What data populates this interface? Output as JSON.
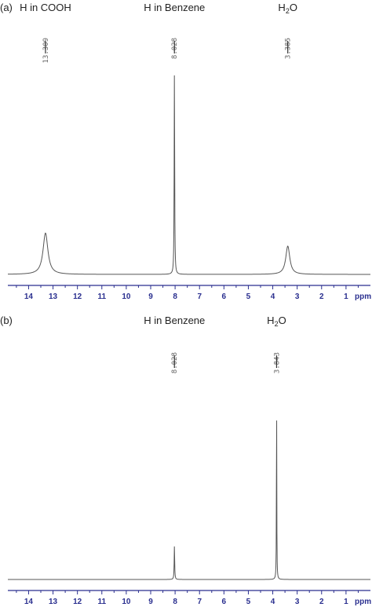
{
  "chart_data": [
    {
      "type": "line",
      "panel_label": "(a)",
      "xlabel": "ppm",
      "xlim": [
        14.85,
        0.0
      ],
      "ylim": [
        0,
        1.0
      ],
      "x_ticks": [
        "14",
        "13",
        "12",
        "11",
        "10",
        "9",
        "8",
        "7",
        "6",
        "5",
        "4",
        "3",
        "2",
        "1"
      ],
      "grid": false,
      "peaks": [
        {
          "shift": 13.309,
          "label": "13.309",
          "height": 0.19,
          "width": 0.12,
          "annotation": "H in COOH"
        },
        {
          "shift": 8.028,
          "label": "8.028",
          "height": 0.93,
          "width": 0.012,
          "annotation": "H in Benzene"
        },
        {
          "shift": 3.385,
          "label": "3.385",
          "height": 0.13,
          "width": 0.1,
          "annotation": "H2O"
        }
      ]
    },
    {
      "type": "line",
      "panel_label": "(b)",
      "xlabel": "ppm",
      "xlim": [
        14.85,
        0.0
      ],
      "ylim": [
        0,
        1.0
      ],
      "x_ticks": [
        "14",
        "13",
        "12",
        "11",
        "10",
        "9",
        "8",
        "7",
        "6",
        "5",
        "4",
        "3",
        "2",
        "1"
      ],
      "grid": false,
      "peaks": [
        {
          "shift": 8.028,
          "label": "8.028",
          "height": 0.16,
          "width": 0.012,
          "annotation": "H in Benzene"
        },
        {
          "shift": 3.843,
          "label": "3.843",
          "height": 0.88,
          "width": 0.008,
          "annotation": "H2O"
        }
      ]
    }
  ],
  "colors": {
    "spectrum": "#555555",
    "axis": "#2a2f8f",
    "text": "#222222",
    "peak_label": "#666666"
  }
}
